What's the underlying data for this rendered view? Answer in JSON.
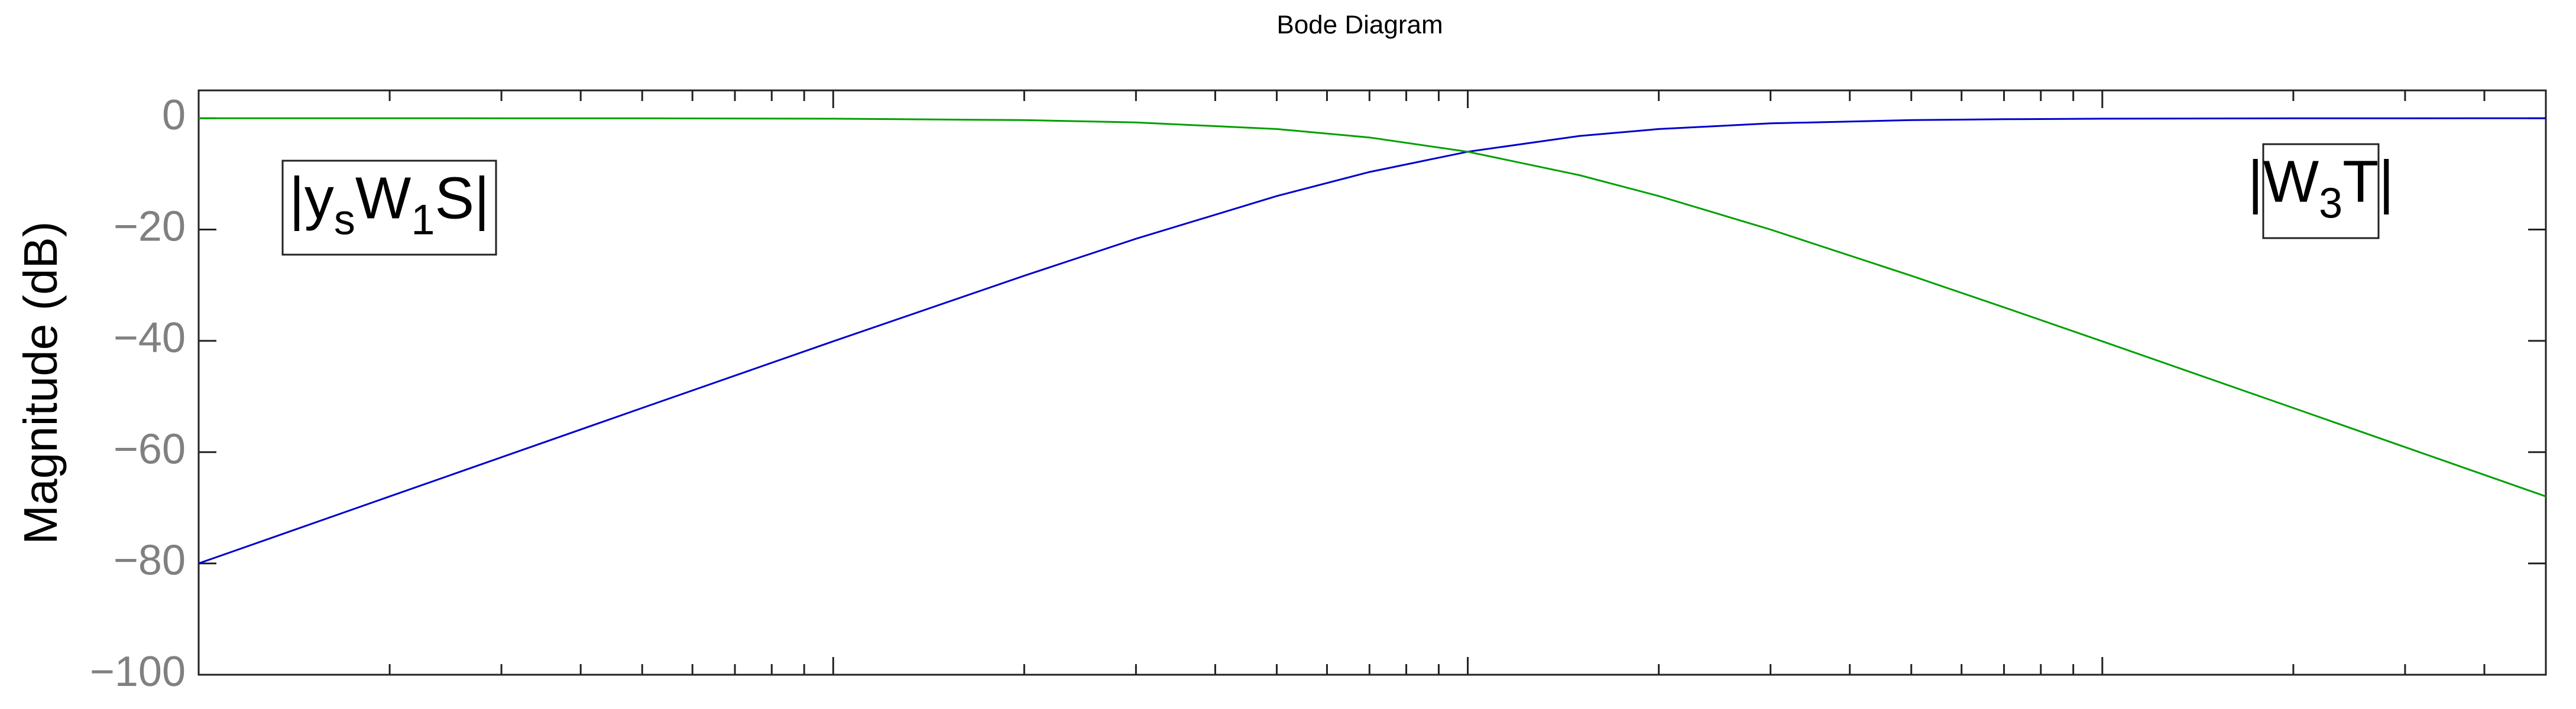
{
  "chart_data": {
    "type": "line",
    "title": "Bode Diagram",
    "y_label": "Magnitude (dB)",
    "x": [
      0.01,
      0.02,
      0.05,
      0.1,
      0.2,
      0.3,
      0.5,
      0.7,
      1,
      1.5,
      2,
      3,
      5,
      7,
      10,
      20,
      50
    ],
    "series": [
      {
        "color": "#0000cc",
        "values": [
          -80.0,
          -67.96,
          -52.06,
          -40.09,
          -28.3,
          -21.66,
          -13.98,
          -9.66,
          -6.02,
          -3.19,
          -1.94,
          -0.92,
          -0.34,
          -0.18,
          -0.09,
          -0.02,
          0.0
        ]
      },
      {
        "color": "#00a000",
        "values": [
          0.0,
          0.0,
          -0.02,
          -0.09,
          -0.34,
          -0.75,
          -1.94,
          -3.46,
          -6.02,
          -10.24,
          -13.98,
          -20.0,
          -28.3,
          -33.98,
          -40.09,
          -52.06,
          -67.96
        ]
      }
    ],
    "annotations": [
      {
        "parts": [
          "|y",
          "s",
          "W",
          "1",
          "S|"
        ]
      },
      {
        "parts": [
          "|W",
          "3",
          "T|"
        ]
      }
    ],
    "xscale": "log",
    "xlim": [
      0.01,
      50
    ],
    "ylim": [
      -100,
      5
    ],
    "yticks": [
      {
        "value": -100,
        "label": "−100"
      },
      {
        "value": -80,
        "label": "−80"
      },
      {
        "value": -60,
        "label": "−60"
      },
      {
        "value": -40,
        "label": "−40"
      },
      {
        "value": -20,
        "label": "−20"
      },
      0
    ]
  }
}
